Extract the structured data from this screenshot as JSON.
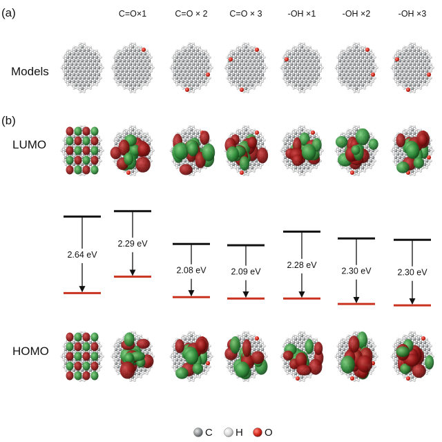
{
  "panels": {
    "a": "(a)",
    "b": "(b)"
  },
  "row_labels": {
    "models": "Models",
    "lumo": "LUMO",
    "homo": "HOMO"
  },
  "columns": [
    {
      "header": "",
      "gap": "2.64 eV",
      "oxygen_atoms": 0,
      "lumo_level": 0.56,
      "homo_level": 0.0
    },
    {
      "header": "C=O×1",
      "gap": "2.29 eV",
      "oxygen_atoms": 1,
      "lumo_level": 0.6,
      "homo_level": 0.12
    },
    {
      "header": "C=O × 2",
      "gap": "2.08 eV",
      "oxygen_atoms": 2,
      "lumo_level": 0.36,
      "homo_level": -0.03
    },
    {
      "header": "C=O × 3",
      "gap": "2.09 eV",
      "oxygen_atoms": 3,
      "lumo_level": 0.35,
      "homo_level": -0.04
    },
    {
      "header": "-OH ×1",
      "gap": "2.28 eV",
      "oxygen_atoms": 1,
      "lumo_level": 0.45,
      "homo_level": -0.04
    },
    {
      "header": "-OH ×2",
      "gap": "2.30 eV",
      "oxygen_atoms": 2,
      "lumo_level": 0.4,
      "homo_level": -0.08
    },
    {
      "header": "-OH ×3",
      "gap": "2.30 eV",
      "oxygen_atoms": 3,
      "lumo_level": 0.39,
      "homo_level": -0.09
    }
  ],
  "legend": [
    {
      "label": "C",
      "color": "#8e9294"
    },
    {
      "label": "H",
      "color": "#d6d6d6"
    },
    {
      "label": "O",
      "color": "#d42a1e"
    }
  ],
  "colors": {
    "lumo_line": "#111111",
    "homo_line": "#c8321e",
    "orbital_red": "#8e1616",
    "orbital_green": "#2f8a3a",
    "atom_gray": "#b9b9b9",
    "oxygen": "#d42a1e"
  }
}
